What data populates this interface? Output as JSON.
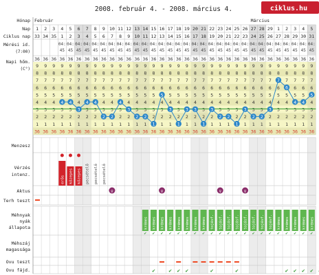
{
  "title": "2008. február 4. - 2008. március 4.",
  "logo": "ciklus.hu",
  "colors": {
    "temp_row_even": "#f6f6c6",
    "temp_row_odd": "#e8e8b4",
    "grid": "#bbbbbb",
    "weekend": "#dddddd",
    "line": "#2c86c8",
    "midline": "#2a9a2a",
    "menses": "#d2232a",
    "intercourse": "#8a2d6a",
    "mucus": "#5fb64f",
    "test_dash": "#ee4a24",
    "check": "#3a9a3a",
    "text_36": "#d23a2a"
  },
  "row_labels": {
    "month": "Hónap",
    "day": "Nap",
    "cycle_day": "Ciklus nap",
    "time": "Mérési id.",
    "time_sub": "(7:00)",
    "temp": "Napi hőm.",
    "temp_unit": "(C°)",
    "menses": "Menzesz",
    "bleeding": "Vérzés",
    "bleeding2": "intenz.",
    "intercourse": "Aktus",
    "pregnancy_test": "Terh teszt",
    "mucus": "Méhnyak",
    "mucus2": "nyák",
    "mucus3": "állapota",
    "cervix": "Méhszáj",
    "cervix2": "magassága",
    "ovu_test": "Ovu teszt",
    "ovu_pain": "Ovu fájd."
  },
  "months": [
    {
      "label": "Február",
      "start_col": 0
    },
    {
      "label": "Március",
      "start_col": 26
    }
  ],
  "days": [
    "1",
    "2",
    "3",
    "4",
    "5",
    "6",
    "7",
    "8",
    "9",
    "10",
    "11",
    "12",
    "13",
    "14",
    "15",
    "16",
    "17",
    "18",
    "19",
    "20",
    "21",
    "22",
    "23",
    "24",
    "25",
    "26",
    "27",
    "28",
    "29",
    "1",
    "2",
    "3",
    "4",
    "5"
  ],
  "cycle_days": [
    "33",
    "34",
    "35",
    "1",
    "2",
    "3",
    "4",
    "5",
    "6",
    "7",
    "8",
    "9",
    "10",
    "11",
    "12",
    "13",
    "14",
    "15",
    "16",
    "17",
    "18",
    "19",
    "20",
    "21",
    "22",
    "23",
    "24",
    "25",
    "26",
    "27",
    "28",
    "29",
    "30",
    "31"
  ],
  "time_value": "04:45",
  "temp_scale": {
    "row_labels": [
      "9",
      "8",
      "7",
      "6",
      "5",
      "4",
      "3",
      "2",
      "1",
      "36"
    ],
    "prefix": "36"
  },
  "chart_data": {
    "type": "line",
    "x": [
      4,
      5,
      6,
      7,
      8,
      9,
      10,
      11,
      12,
      13,
      14,
      15,
      16,
      17,
      18,
      19,
      20,
      21,
      22,
      23,
      24,
      25,
      26,
      27,
      28,
      29,
      30,
      31,
      32,
      33,
      34
    ],
    "series": [
      {
        "values": [
          36.4,
          36.4,
          36.3,
          36.4,
          36.4,
          36.2,
          36.2,
          36.4,
          36.3,
          36.2,
          36.2,
          36.1,
          36.5,
          36.3,
          36.1,
          36.3,
          36.3,
          36.1,
          36.3,
          36.2,
          36.2,
          36.1,
          36.3,
          36.2,
          36.2,
          36.3,
          36.7,
          36.6,
          36.4,
          36.4,
          36.5
        ],
        "labels": [
          "4",
          "4",
          "3",
          "4",
          "4",
          "2",
          "2",
          "4",
          "3",
          "2",
          "2",
          "1",
          "5",
          "3",
          "1",
          "3",
          "3",
          "1",
          "3",
          "2",
          "2",
          "1",
          "3",
          "2",
          "2",
          "3",
          "7",
          "6",
          "4",
          "4",
          "5"
        ]
      }
    ],
    "ylim": [
      36.0,
      36.9
    ]
  },
  "menses_cols": [
    3,
    4,
    5
  ],
  "bleeding": [
    {
      "col": 3,
      "level": 3,
      "label": "erős"
    },
    {
      "col": 4,
      "level": 2,
      "label": "közepes"
    },
    {
      "col": 5,
      "level": 2,
      "label": "közepes"
    },
    {
      "col": 6,
      "level": 1,
      "label": "pecsételő"
    },
    {
      "col": 7,
      "level": 1,
      "label": "pecsételő"
    },
    {
      "col": 8,
      "level": 1,
      "label": "pecsételő"
    }
  ],
  "intercourse_cols": [
    9,
    15,
    22,
    25
  ],
  "intercourse_symbol": "♀",
  "pregnancy_test_cols": [
    0
  ],
  "mucus": [
    {
      "col": 13,
      "label": "krémes"
    },
    {
      "col": 14,
      "label": "krémes"
    },
    {
      "col": 15,
      "label": "krémes"
    },
    {
      "col": 16,
      "label": "krémes"
    },
    {
      "col": 17,
      "label": "krémes"
    },
    {
      "col": 18,
      "label": "krémes"
    },
    {
      "col": 19,
      "label": "krémes"
    },
    {
      "col": 20,
      "label": "krémes"
    },
    {
      "col": 21,
      "label": "tojásf."
    },
    {
      "col": 22,
      "label": "tojásf."
    },
    {
      "col": 23,
      "label": "tojásf."
    },
    {
      "col": 24,
      "label": "tojásf."
    },
    {
      "col": 25,
      "label": "tojásf."
    },
    {
      "col": 26,
      "label": "tojásf."
    },
    {
      "col": 27,
      "label": "tojásf."
    },
    {
      "col": 28,
      "label": "tojásf."
    },
    {
      "col": 29,
      "label": "krémes"
    },
    {
      "col": 30,
      "label": "krémes"
    },
    {
      "col": 31,
      "label": "krémes"
    },
    {
      "col": 32,
      "label": "krémes"
    },
    {
      "col": 33,
      "label": "krémes"
    }
  ],
  "ovu_test_cols": [
    15,
    17,
    19,
    20,
    21,
    22,
    23,
    24
  ],
  "ovu_pain_cols": [
    14,
    16,
    17,
    18,
    21,
    24,
    30,
    31,
    32,
    33,
    34
  ],
  "check_symbol": "✔",
  "mucus_check_cols": [
    13,
    14,
    15,
    16,
    17,
    18,
    19,
    20,
    21,
    22,
    23,
    24,
    25,
    26,
    27,
    28,
    29,
    30,
    31,
    32,
    33
  ]
}
